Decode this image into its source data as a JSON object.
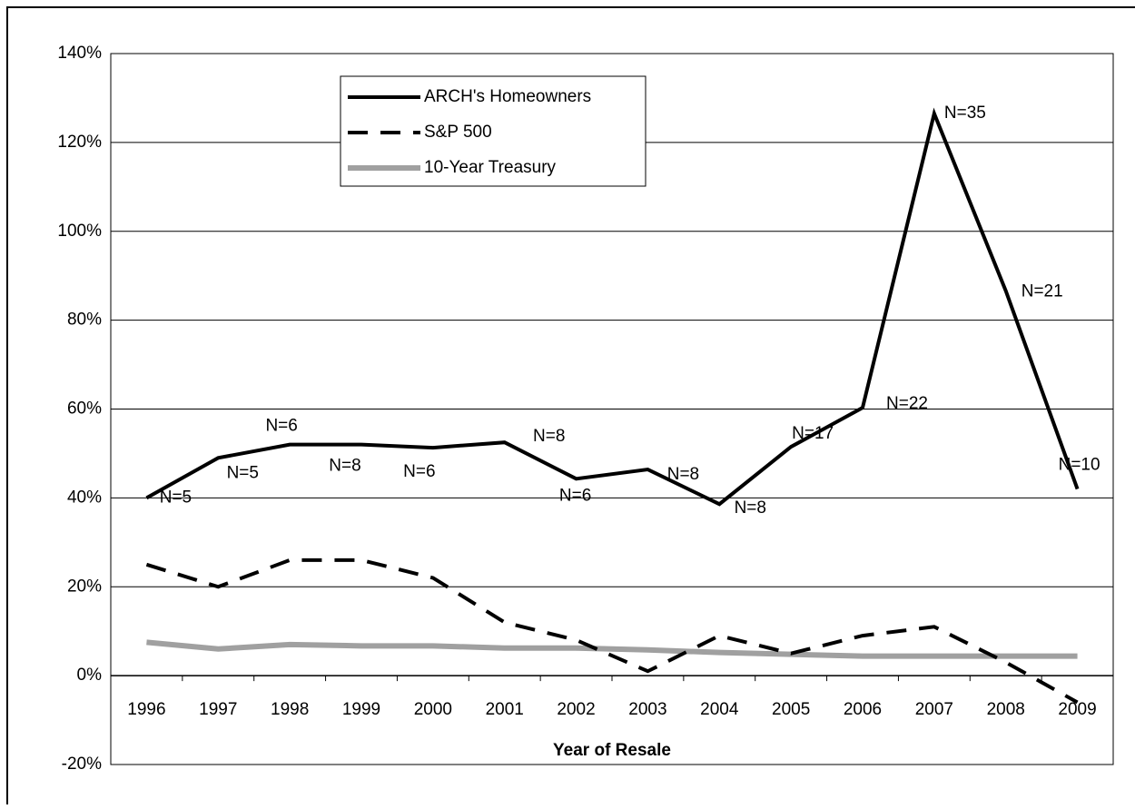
{
  "chart_data": {
    "type": "line",
    "x_label": "Year of Resale",
    "categories": [
      "1996",
      "1997",
      "1998",
      "1999",
      "2000",
      "2001",
      "2002",
      "2003",
      "2004",
      "2005",
      "2006",
      "2007",
      "2008",
      "2009"
    ],
    "series": [
      {
        "name": "ARCH's Homeowners",
        "color": "#000000",
        "style": "solid",
        "values": [
          40,
          49,
          52,
          52,
          51.3,
          52.5,
          44.3,
          46.4,
          38.6,
          51.5,
          60.3,
          126.5,
          86.6,
          42
        ],
        "point_labels": [
          "N=5",
          "N=5",
          "N=6",
          "N=8",
          "N=6",
          "N=8",
          "N=6",
          "N=8",
          "N=8",
          "N=17",
          "N=22",
          "N=35",
          "N=21",
          "N=10"
        ]
      },
      {
        "name": "S&P 500",
        "color": "#000000",
        "style": "dashed",
        "values": [
          25,
          20,
          26,
          26,
          22,
          12,
          8,
          1,
          9,
          5,
          9,
          11,
          3,
          -6
        ]
      },
      {
        "name": "10-Year Treasury",
        "color": "#a0a0a0",
        "style": "solid-thick",
        "values": [
          7.5,
          6,
          7,
          6.7,
          6.7,
          6.2,
          6.2,
          5.8,
          5.2,
          4.8,
          4.4,
          4.4,
          4.4,
          4.4
        ]
      }
    ],
    "ylim": [
      -20,
      140
    ],
    "yticks": [
      {
        "value": -20,
        "label": "-20%"
      },
      {
        "value": 0,
        "label": "0%"
      },
      {
        "value": 20,
        "label": "20%"
      },
      {
        "value": 40,
        "label": "40%"
      },
      {
        "value": 60,
        "label": "60%"
      },
      {
        "value": 80,
        "label": "80%"
      },
      {
        "value": 100,
        "label": "100%"
      },
      {
        "value": 120,
        "label": "120%"
      },
      {
        "value": 140,
        "label": "140%"
      }
    ],
    "grid": true,
    "legend": "top-left"
  }
}
